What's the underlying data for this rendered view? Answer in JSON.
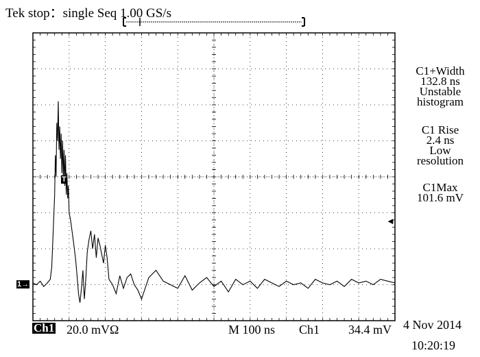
{
  "header": {
    "status": "Tek stop：single Seq  1.00 GS/s"
  },
  "measurements": [
    {
      "lines": [
        "C1+Width",
        "132.8 ns",
        "Unstable",
        "histogram"
      ]
    },
    {
      "lines": [
        "C1 Rise",
        "2.4 ns",
        "Low",
        "resolution"
      ]
    },
    {
      "lines": [
        "C1Max",
        "101.6 mV"
      ]
    }
  ],
  "footer": {
    "channel_label": "Ch1",
    "scale": "20.0 mVΩ",
    "timebase": "M  100 ns",
    "trigger_source": "Ch1",
    "trigger_level": "34.4 mV",
    "date": "4 Nov 2014",
    "time": "10:20:19"
  },
  "markers": {
    "ch1_ground": "1→",
    "trigger_pos": "T",
    "trigger_level_arrow": "◄"
  },
  "chart_data": {
    "type": "line",
    "title": "",
    "xlabel": "",
    "ylabel": "",
    "x_units": "ns",
    "y_units": "mV",
    "x_div": 100,
    "y_div": 20,
    "xlim": [
      0,
      1000
    ],
    "ylim": [
      -20,
      140
    ],
    "grid": true,
    "series": [
      {
        "x": [
          0,
          10,
          20,
          30,
          40,
          48,
          52,
          56,
          60,
          62,
          64,
          66,
          68,
          70,
          72,
          74,
          76,
          78,
          80,
          82,
          84,
          86,
          88,
          90,
          92,
          94,
          96,
          98,
          100,
          104,
          108,
          112,
          118,
          122,
          126,
          130,
          134,
          138,
          142,
          146,
          150,
          155,
          160,
          165,
          170,
          175,
          180,
          185,
          190,
          195,
          200,
          205,
          210,
          220,
          230,
          240,
          250,
          260,
          270,
          280,
          290,
          300,
          320,
          340,
          360,
          380,
          400,
          420,
          440,
          460,
          480,
          500,
          520,
          540,
          560,
          580,
          600,
          620,
          640,
          660,
          680,
          700,
          720,
          740,
          760,
          780,
          800,
          820,
          840,
          860,
          880,
          900,
          920,
          940,
          960,
          980,
          1000
        ],
        "y": [
          1,
          0,
          2,
          -1,
          1,
          3,
          10,
          30,
          50,
          72,
          60,
          90,
          80,
          102,
          75,
          88,
          70,
          84,
          62,
          80,
          58,
          75,
          55,
          72,
          50,
          62,
          48,
          55,
          40,
          36,
          30,
          24,
          14,
          5,
          -5,
          -10,
          -2,
          8,
          -8,
          3,
          18,
          25,
          30,
          20,
          28,
          15,
          26,
          22,
          17,
          12,
          22,
          15,
          3,
          0,
          -5,
          5,
          -2,
          4,
          6,
          0,
          -3,
          -8,
          4,
          8,
          2,
          0,
          -2,
          5,
          -3,
          1,
          4,
          -1,
          2,
          -4,
          3,
          0,
          2,
          -2,
          3,
          1,
          -1,
          2,
          0,
          1,
          -2,
          3,
          1,
          0,
          2,
          -1,
          3,
          1,
          2,
          0,
          3,
          2,
          1
        ]
      }
    ]
  }
}
